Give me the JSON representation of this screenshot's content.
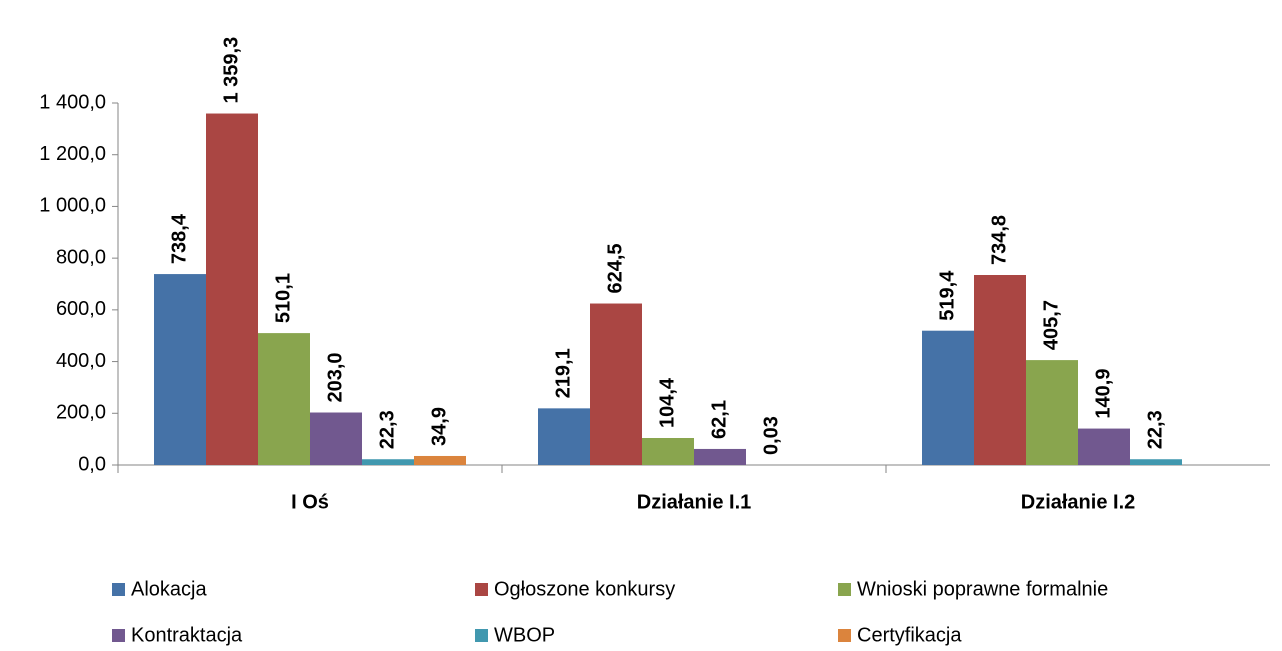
{
  "chart_data": {
    "type": "bar",
    "categories": [
      "I Oś",
      "Działanie I.1",
      "Działanie I.2"
    ],
    "series": [
      {
        "name": "Alokacja",
        "color": "#4572a7",
        "values": [
          738.4,
          219.1,
          519.4
        ],
        "value_labels": [
          "738,4",
          "219,1",
          "519,4"
        ]
      },
      {
        "name": "Ogłoszone konkursy",
        "color": "#aa4643",
        "values": [
          1359.3,
          624.5,
          734.8
        ],
        "value_labels": [
          "1 359,3",
          "624,5",
          "734,8"
        ]
      },
      {
        "name": "Wnioski poprawne formalnie",
        "color": "#89a54e",
        "values": [
          510.1,
          104.4,
          405.7
        ],
        "value_labels": [
          "510,1",
          "104,4",
          "405,7"
        ]
      },
      {
        "name": "Kontraktacja",
        "color": "#71588f",
        "values": [
          203.0,
          62.1,
          140.9
        ],
        "value_labels": [
          "203,0",
          "62,1",
          "140,9"
        ]
      },
      {
        "name": "WBOP",
        "color": "#4198af",
        "values": [
          22.3,
          0.03,
          22.3
        ],
        "value_labels": [
          "22,3",
          "0,03",
          "22,3"
        ]
      },
      {
        "name": "Certyfikacja",
        "color": "#db843d",
        "values": [
          34.9,
          null,
          null
        ],
        "value_labels": [
          "34,9",
          null,
          null
        ]
      }
    ],
    "ylim": [
      0,
      1400
    ],
    "yticks": [
      {
        "value": 0,
        "label": "0,0"
      },
      {
        "value": 200,
        "label": "200,0"
      },
      {
        "value": 400,
        "label": "400,0"
      },
      {
        "value": 600,
        "label": "600,0"
      },
      {
        "value": 800,
        "label": "800,0"
      },
      {
        "value": 1000,
        "label": "1 000,0"
      },
      {
        "value": 1200,
        "label": "1 200,0"
      },
      {
        "value": 1400,
        "label": "1 400,0"
      }
    ],
    "legend": "bottom"
  }
}
